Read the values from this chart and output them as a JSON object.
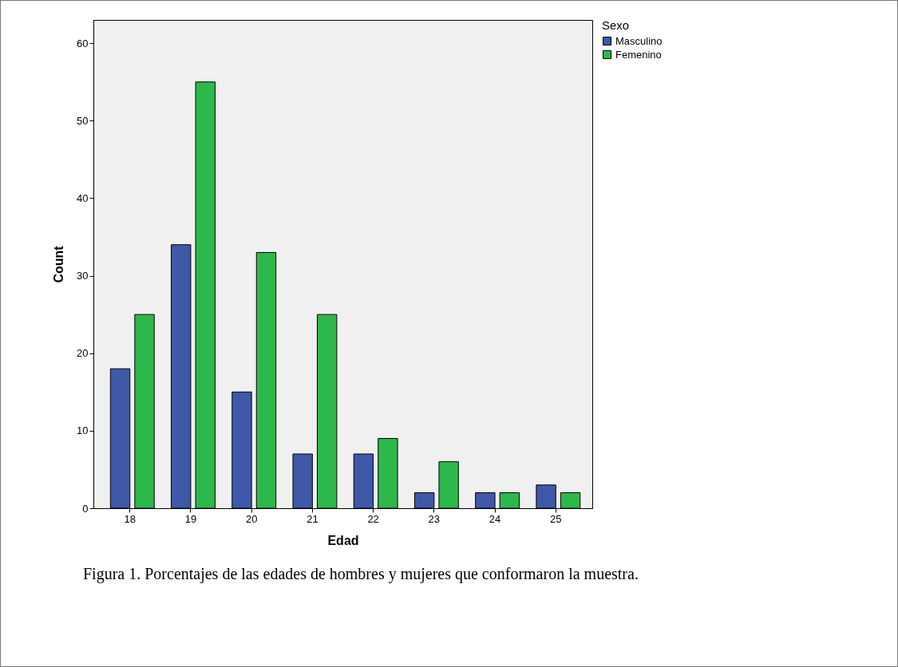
{
  "chart_data": {
    "type": "bar",
    "xlabel": "Edad",
    "ylabel": "Count",
    "legend_title": "Sexo",
    "categories": [
      "18",
      "19",
      "20",
      "21",
      "22",
      "23",
      "24",
      "25"
    ],
    "series": [
      {
        "name": "Masculino",
        "color": "#3f58a8",
        "values": [
          18,
          34,
          15,
          7,
          7,
          2,
          2,
          3
        ]
      },
      {
        "name": "Femenino",
        "color": "#2db84b",
        "values": [
          25,
          55,
          33,
          25,
          9,
          6,
          2,
          2
        ]
      }
    ],
    "ylim": [
      0,
      63
    ],
    "yticks": [
      0,
      10,
      20,
      30,
      40,
      50,
      60
    ],
    "grid": false,
    "legend": "top right",
    "annotations": [
      "Figura 1. Porcentajes de las edades de hombres y mujeres que conformaron la muestra."
    ]
  }
}
